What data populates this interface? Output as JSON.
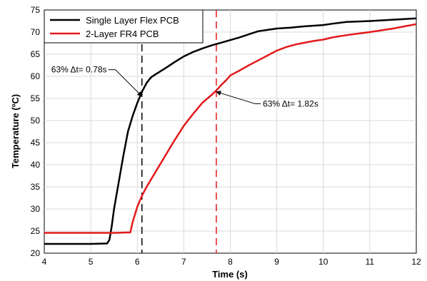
{
  "chart_data": {
    "type": "line",
    "title": "",
    "xlabel": "Time (s)",
    "ylabel": "Temperature (ºC)",
    "xlim": [
      4,
      12
    ],
    "ylim": [
      20,
      75
    ],
    "xticks": [
      4,
      5,
      6,
      7,
      8,
      9,
      10,
      11,
      12
    ],
    "yticks": [
      20,
      25,
      30,
      35,
      40,
      45,
      50,
      55,
      60,
      65,
      70,
      75
    ],
    "grid": true,
    "legend_position": "top-left",
    "series": [
      {
        "name": "Single Layer Flex PCB",
        "color": "#000000",
        "x": [
          4.0,
          5.0,
          5.35,
          5.4,
          5.45,
          5.5,
          5.6,
          5.7,
          5.8,
          5.9,
          6.0,
          6.1,
          6.2,
          6.3,
          6.4,
          6.6,
          6.8,
          7.0,
          7.2,
          7.4,
          7.6,
          7.8,
          8.0,
          8.2,
          8.4,
          8.6,
          8.8,
          9.0,
          9.3,
          9.6,
          10.0,
          10.2,
          10.5,
          11.0,
          11.5,
          12.0
        ],
        "y": [
          22.1,
          22.1,
          22.2,
          23.0,
          26.0,
          30.0,
          36.0,
          42.0,
          47.5,
          51.0,
          54.0,
          56.5,
          58.5,
          59.8,
          60.5,
          61.8,
          63.2,
          64.5,
          65.5,
          66.3,
          67.0,
          67.6,
          68.2,
          68.8,
          69.5,
          70.2,
          70.5,
          70.8,
          71.0,
          71.3,
          71.6,
          71.9,
          72.3,
          72.5,
          72.8,
          73.1
        ]
      },
      {
        "name": "2-Layer FR4 PCB",
        "color": "#e31a1c",
        "x": [
          4.0,
          5.5,
          5.85,
          5.9,
          6.0,
          6.1,
          6.2,
          6.4,
          6.6,
          6.8,
          7.0,
          7.2,
          7.4,
          7.6,
          7.7,
          7.8,
          7.9,
          8.0,
          8.2,
          8.4,
          8.6,
          8.8,
          9.0,
          9.2,
          9.4,
          9.6,
          9.8,
          10.0,
          10.2,
          10.5,
          11.0,
          11.5,
          12.0
        ],
        "y": [
          24.6,
          24.6,
          24.7,
          27.0,
          30.5,
          33.0,
          35.0,
          38.5,
          42.0,
          45.5,
          48.8,
          51.5,
          54.0,
          55.8,
          56.8,
          58.0,
          59.0,
          60.2,
          61.3,
          62.5,
          63.6,
          64.7,
          65.8,
          66.6,
          67.2,
          67.6,
          68.0,
          68.3,
          68.8,
          69.3,
          70.0,
          70.8,
          71.8
        ]
      }
    ],
    "vlines": [
      {
        "x": 6.1,
        "color": "#000000",
        "style": "dashed"
      },
      {
        "x": 7.7,
        "color": "#e31a1c",
        "style": "dashed"
      }
    ],
    "annotations": [
      {
        "text": "63% Δt= 0.78s",
        "point_x": 6.1,
        "point_y": 55.5,
        "label_x": 4.15,
        "label_y": 61.5
      },
      {
        "text": "63% Δt= 1.82s",
        "point_x": 7.7,
        "point_y": 56.5,
        "label_x": 8.7,
        "label_y": 53.8
      }
    ]
  }
}
